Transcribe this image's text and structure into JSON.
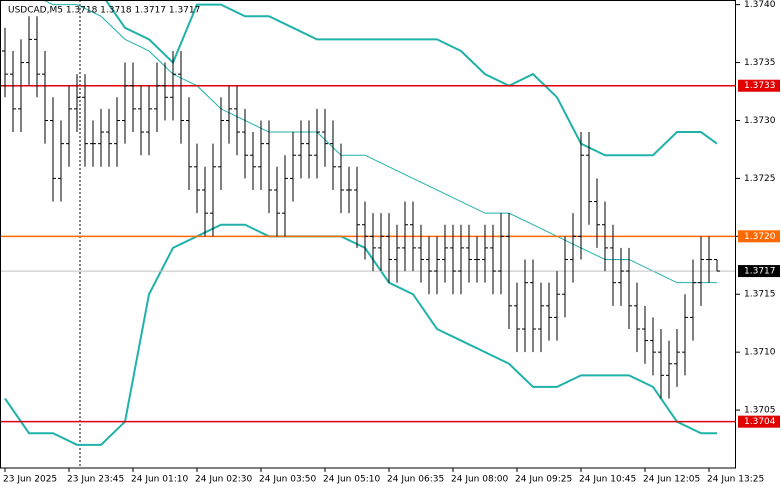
{
  "chart_data": {
    "type": "ohlc",
    "title": "USDCAD,M5 1.3718 1.3718 1.3717 1.3717",
    "color": "#000000",
    "open": [
      1.3736,
      1.3734,
      1.3731,
      1.3735,
      1.3737,
      1.3734,
      1.373,
      1.3725,
      1.3728,
      1.3731,
      1.3732,
      1.3728,
      1.3728,
      1.3729,
      1.3728,
      1.373,
      1.3733,
      1.3731,
      1.3729,
      1.3731,
      1.3733,
      1.3732,
      1.3734,
      1.373,
      1.3726,
      1.3724,
      1.3722,
      1.3726,
      1.373,
      1.3731,
      1.3729,
      1.3727,
      1.3726,
      1.3728,
      1.3724,
      1.3722,
      1.3725,
      1.3727,
      1.3728,
      1.3727,
      1.3729,
      1.3728,
      1.3726,
      1.3724,
      1.3724,
      1.3721,
      1.372,
      1.3719,
      1.372,
      1.3718,
      1.3719,
      1.3721,
      1.3719,
      1.3718,
      1.3717,
      1.3718,
      1.3719,
      1.3717,
      1.3719,
      1.3718,
      1.3718,
      1.3719,
      1.3717,
      1.372,
      1.3714,
      1.3712,
      1.3716,
      1.3712,
      1.3714,
      1.3713,
      1.3715,
      1.3718,
      1.372,
      1.3727,
      1.3723,
      1.3721,
      1.3719,
      1.3716,
      1.3717,
      1.3714,
      1.3712,
      1.3711,
      1.371,
      1.3708,
      1.3709,
      1.371,
      1.3713,
      1.3716,
      1.3718,
      1.3718
    ],
    "high": [
      1.3738,
      1.3736,
      1.3737,
      1.3739,
      1.3739,
      1.3736,
      1.3732,
      1.373,
      1.3733,
      1.3734,
      1.3734,
      1.373,
      1.3731,
      1.3731,
      1.3732,
      1.3735,
      1.3735,
      1.3733,
      1.3733,
      1.3735,
      1.3735,
      1.3736,
      1.3736,
      1.3732,
      1.3728,
      1.3726,
      1.3728,
      1.3732,
      1.3733,
      1.3733,
      1.3731,
      1.3729,
      1.373,
      1.373,
      1.3726,
      1.3727,
      1.3729,
      1.373,
      1.373,
      1.3731,
      1.3731,
      1.373,
      1.3728,
      1.3726,
      1.3726,
      1.3723,
      1.3722,
      1.3722,
      1.3722,
      1.3721,
      1.3723,
      1.3723,
      1.3721,
      1.372,
      1.372,
      1.3721,
      1.3721,
      1.3721,
      1.3721,
      1.372,
      1.3721,
      1.3721,
      1.3722,
      1.3722,
      1.3716,
      1.3718,
      1.3718,
      1.3716,
      1.3716,
      1.3717,
      1.372,
      1.3722,
      1.3729,
      1.3729,
      1.3725,
      1.3723,
      1.3721,
      1.3719,
      1.3719,
      1.3716,
      1.3714,
      1.3713,
      1.3712,
      1.3711,
      1.3712,
      1.3715,
      1.3718,
      1.372,
      1.372,
      1.3718
    ],
    "low": [
      1.3732,
      1.3729,
      1.3729,
      1.3733,
      1.3732,
      1.3728,
      1.3723,
      1.3723,
      1.3726,
      1.3729,
      1.3726,
      1.3726,
      1.3726,
      1.3726,
      1.3726,
      1.3728,
      1.3729,
      1.3727,
      1.3727,
      1.3729,
      1.373,
      1.373,
      1.3728,
      1.3724,
      1.3722,
      1.372,
      1.372,
      1.3724,
      1.3728,
      1.3727,
      1.3725,
      1.3724,
      1.3724,
      1.3722,
      1.372,
      1.372,
      1.3723,
      1.3725,
      1.3725,
      1.3725,
      1.3726,
      1.3724,
      1.3722,
      1.3722,
      1.3719,
      1.3718,
      1.3717,
      1.3717,
      1.3716,
      1.3716,
      1.3717,
      1.3717,
      1.3716,
      1.3715,
      1.3715,
      1.3716,
      1.3715,
      1.3715,
      1.3716,
      1.3716,
      1.3716,
      1.3715,
      1.3715,
      1.3712,
      1.371,
      1.371,
      1.371,
      1.371,
      1.3711,
      1.3711,
      1.3713,
      1.3716,
      1.3718,
      1.3721,
      1.3719,
      1.3717,
      1.3714,
      1.3714,
      1.3712,
      1.371,
      1.3709,
      1.3708,
      1.3706,
      1.3706,
      1.3707,
      1.3708,
      1.3711,
      1.3714,
      1.3716,
      1.3717
    ],
    "close": [
      1.3734,
      1.3731,
      1.3735,
      1.3737,
      1.3734,
      1.373,
      1.3725,
      1.3728,
      1.3731,
      1.3732,
      1.3728,
      1.3728,
      1.3729,
      1.3728,
      1.373,
      1.3733,
      1.3731,
      1.3729,
      1.3731,
      1.3733,
      1.3732,
      1.3734,
      1.373,
      1.3726,
      1.3724,
      1.3722,
      1.3726,
      1.373,
      1.3731,
      1.3729,
      1.3727,
      1.3726,
      1.3728,
      1.3724,
      1.3722,
      1.3725,
      1.3727,
      1.3728,
      1.3727,
      1.3729,
      1.3728,
      1.3726,
      1.3724,
      1.3724,
      1.3721,
      1.372,
      1.3719,
      1.372,
      1.3718,
      1.3719,
      1.3721,
      1.3719,
      1.3718,
      1.3717,
      1.3718,
      1.3719,
      1.3717,
      1.3719,
      1.3718,
      1.3718,
      1.3719,
      1.3717,
      1.372,
      1.3714,
      1.3712,
      1.3716,
      1.3712,
      1.3714,
      1.3713,
      1.3715,
      1.3718,
      1.372,
      1.3727,
      1.3723,
      1.3721,
      1.3719,
      1.3716,
      1.3717,
      1.3714,
      1.3712,
      1.3711,
      1.371,
      1.3708,
      1.3709,
      1.371,
      1.3713,
      1.3716,
      1.3718,
      1.3718,
      1.3717
    ],
    "bands": {
      "color": "#20b2aa",
      "x": [
        0,
        3,
        6,
        9,
        12,
        15,
        18,
        21,
        24,
        27,
        30,
        33,
        36,
        39,
        42,
        45,
        48,
        51,
        54,
        57,
        60,
        63,
        66,
        69,
        72,
        75,
        78,
        81,
        84,
        87,
        89
      ],
      "upper": [
        1.3749,
        1.3747,
        1.3746,
        1.3744,
        1.3741,
        1.3738,
        1.3737,
        1.3735,
        1.374,
        1.374,
        1.3739,
        1.3739,
        1.3738,
        1.3737,
        1.3737,
        1.3737,
        1.3737,
        1.3737,
        1.3737,
        1.3736,
        1.3734,
        1.3733,
        1.3734,
        1.3732,
        1.3728,
        1.3727,
        1.3727,
        1.3727,
        1.3729,
        1.3729,
        1.3728
      ],
      "middle": [
        1.3742,
        1.3741,
        1.374,
        1.374,
        1.3739,
        1.3737,
        1.3736,
        1.3734,
        1.3733,
        1.3731,
        1.373,
        1.3729,
        1.3729,
        1.3729,
        1.3727,
        1.3727,
        1.3726,
        1.3725,
        1.3724,
        1.3723,
        1.3722,
        1.3722,
        1.3721,
        1.372,
        1.3719,
        1.3718,
        1.3718,
        1.3717,
        1.3716,
        1.3716,
        1.3716
      ],
      "lower": [
        1.3706,
        1.3703,
        1.3703,
        1.3702,
        1.3702,
        1.3704,
        1.3715,
        1.3719,
        1.372,
        1.3721,
        1.3721,
        1.372,
        1.372,
        1.372,
        1.372,
        1.3719,
        1.3716,
        1.3715,
        1.3712,
        1.3711,
        1.371,
        1.3709,
        1.3707,
        1.3707,
        1.3708,
        1.3708,
        1.3708,
        1.3707,
        1.3704,
        1.3703,
        1.3703
      ]
    },
    "levels": [
      {
        "value": 1.3733,
        "color": "#e00000"
      },
      {
        "value": {
          "value": 1.372,
          "label": "1.3720"
        },
        "color": "#ff6a00"
      },
      {
        "value": 1.3704,
        "color": "#e00000"
      },
      {
        "value": 1.3717,
        "color": "#000000",
        "line": "#c0c0c0"
      }
    ],
    "xlim": [
      -0.625,
      91.25
    ],
    "xticks": [
      {
        "value": 0,
        "label": "23 Jun 2025"
      },
      {
        "value": 8,
        "label": "23 Jun 23:45"
      },
      {
        "value": 16,
        "label": "24 Jun 01:10"
      },
      {
        "value": 24,
        "label": "24 Jun 02:30"
      },
      {
        "value": 32,
        "label": "24 Jun 03:50"
      },
      {
        "value": 40,
        "label": "24 Jun 05:10"
      },
      {
        "value": 48,
        "label": "24 Jun 06:35"
      },
      {
        "value": 56,
        "label": "24 Jun 08:00"
      },
      {
        "value": 64,
        "label": "24 Jun 09:25"
      },
      {
        "value": 72,
        "label": "24 Jun 10:45"
      },
      {
        "value": 80,
        "label": "24 Jun 12:05"
      },
      {
        "value": 88,
        "label": "24 Jun 13:25"
      }
    ],
    "ylim": [
      1.37,
      1.37404
    ],
    "yticks": [
      {
        "value": 1.374,
        "label": "1.3740"
      },
      1.3735,
      {
        "value": 1.373,
        "label": "1.3730"
      },
      1.3725,
      {
        "value": 1.372,
        "label": "1.3720"
      },
      1.3715,
      {
        "value": 1.371,
        "label": "1.3710"
      },
      1.3705
    ]
  }
}
